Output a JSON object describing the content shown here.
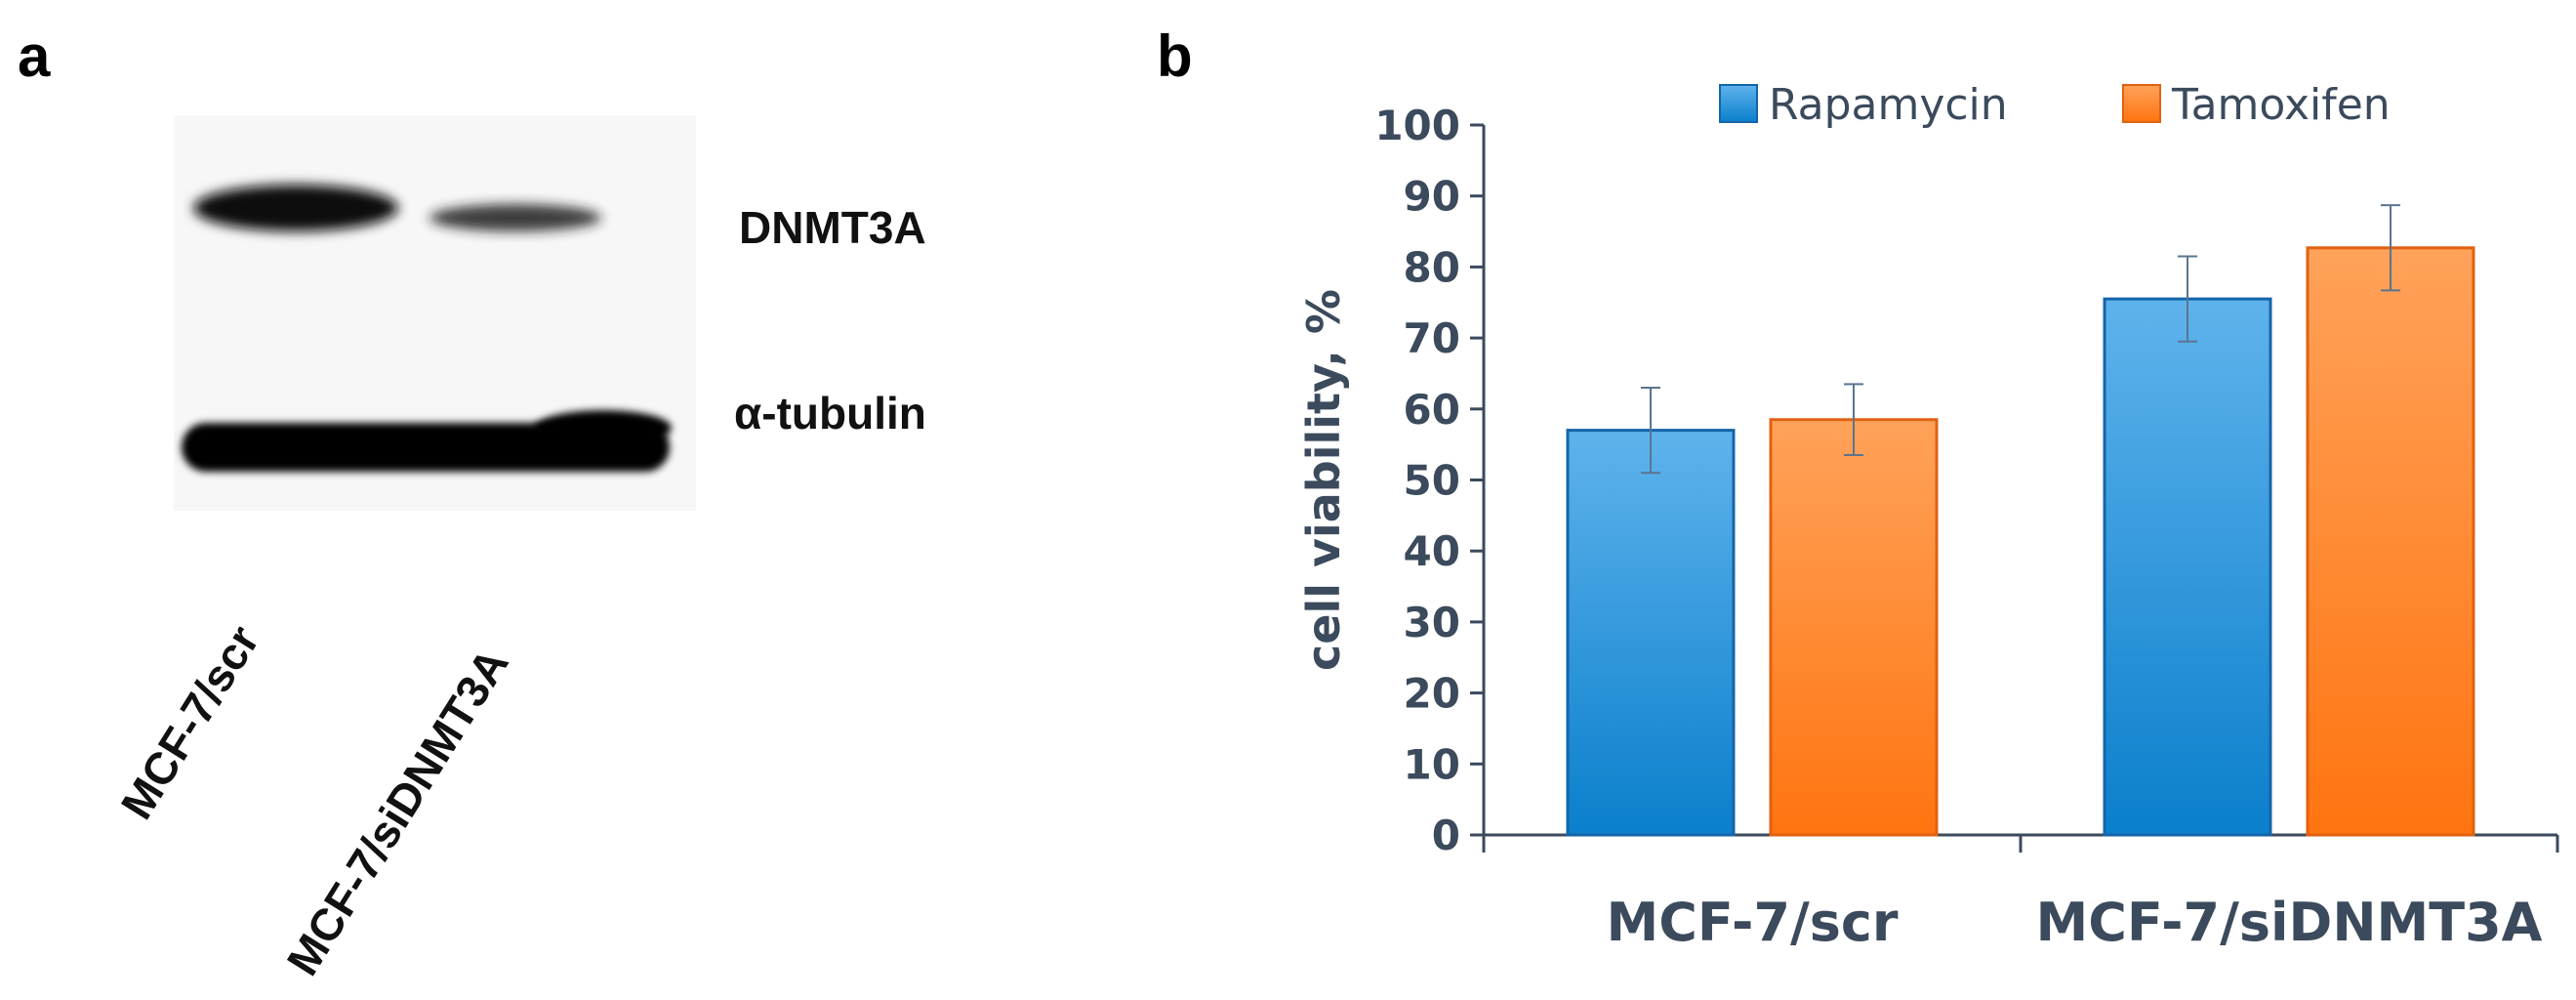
{
  "panels": {
    "a": "a",
    "b": "b"
  },
  "western_blot": {
    "bands": [
      "DNMT3A",
      "α-tubulin"
    ],
    "lanes": [
      "MCF-7/scr",
      "MCF-7/siDNMT3A"
    ]
  },
  "colors": {
    "rapamycin": "#1e8fd6",
    "tamoxifen": "#ff8a33",
    "axis_text": "#3b4a5c",
    "blot_band": "#0c0c0c"
  },
  "chart_data": {
    "type": "bar",
    "title": "",
    "xlabel": "",
    "ylabel": "cell viability, %",
    "categories": [
      "MCF-7/scr",
      "MCF-7/siDNMT3A"
    ],
    "series": [
      {
        "name": "Rapamycin",
        "values": [
          57,
          75.5
        ],
        "errors": [
          6,
          6
        ]
      },
      {
        "name": "Tamoxifen",
        "values": [
          58.5,
          82.7
        ],
        "errors": [
          5,
          6
        ]
      }
    ],
    "ylim": [
      0,
      100
    ],
    "yticks": [
      0,
      10,
      20,
      30,
      40,
      50,
      60,
      70,
      80,
      90,
      100
    ],
    "grid": false,
    "legend_position": "top"
  }
}
